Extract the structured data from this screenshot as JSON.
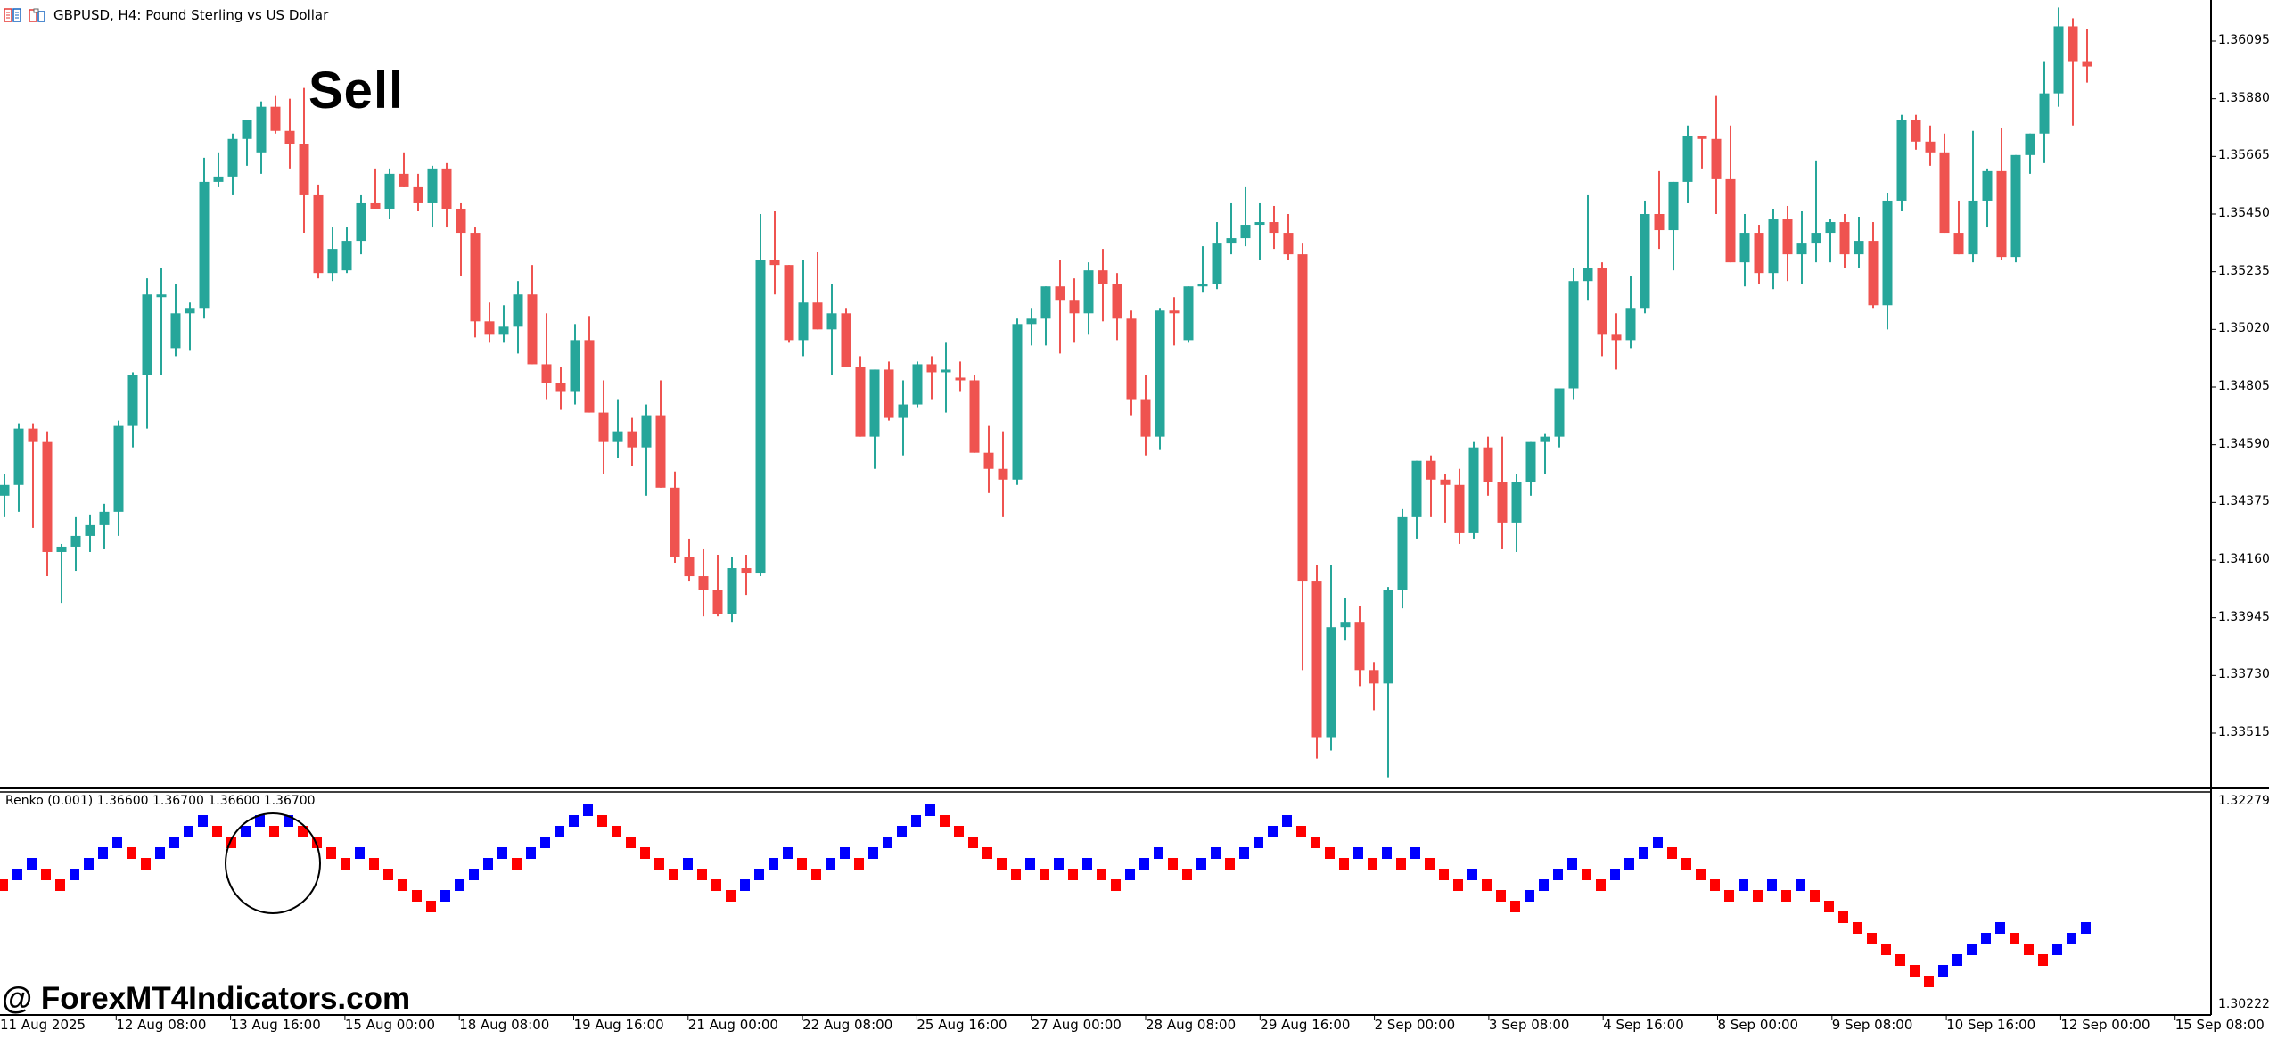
{
  "window": {
    "title": "GBPUSD, H4:  Pound Sterling vs US Dollar",
    "icons": [
      "chart-list-icon",
      "chart-window-icon"
    ]
  },
  "annotations": {
    "signal_label": "Sell",
    "watermark": "@ ForexMT4Indicators.com"
  },
  "colors": {
    "bull": "#26a69a",
    "bear": "#ef5350",
    "renko_up": "#0000ff",
    "renko_down": "#ff0000",
    "axis": "#000000",
    "background": "#ffffff"
  },
  "indicator": {
    "label": "Renko (0.001) 1.36600 1.36700 1.36600 1.36700",
    "scale_top": "1.32279",
    "scale_bottom": "1.30222"
  },
  "price_axis": {
    "ticks": [
      "1.36095",
      "1.35880",
      "1.35665",
      "1.35450",
      "1.35235",
      "1.35020",
      "1.34805",
      "1.34590",
      "1.34375",
      "1.34160",
      "1.33945",
      "1.33730",
      "1.33515"
    ]
  },
  "time_axis": {
    "ticks": [
      "11 Aug 2025",
      "12 Aug 08:00",
      "13 Aug 16:00",
      "15 Aug 00:00",
      "18 Aug 08:00",
      "19 Aug 16:00",
      "21 Aug 00:00",
      "22 Aug 08:00",
      "25 Aug 16:00",
      "27 Aug 00:00",
      "28 Aug 08:00",
      "29 Aug 16:00",
      "2 Sep 00:00",
      "3 Sep 08:00",
      "4 Sep 16:00",
      "8 Sep 00:00",
      "9 Sep 08:00",
      "10 Sep 16:00",
      "12 Sep 00:00",
      "15 Sep 08:00"
    ]
  },
  "chart_data": {
    "type": "candlestick",
    "symbol": "GBPUSD",
    "timeframe": "H4",
    "title": "GBPUSD, H4:  Pound Sterling vs US Dollar",
    "ylim": [
      1.333,
      1.3625
    ],
    "candles_ohlc": [
      [
        1.344,
        1.3448,
        1.3432,
        1.3444
      ],
      [
        1.3444,
        1.3467,
        1.3434,
        1.3465
      ],
      [
        1.3465,
        1.3467,
        1.3428,
        1.346
      ],
      [
        1.346,
        1.3464,
        1.341,
        1.3419
      ],
      [
        1.3419,
        1.3422,
        1.34,
        1.3421
      ],
      [
        1.3421,
        1.3432,
        1.3412,
        1.3425
      ],
      [
        1.3425,
        1.3433,
        1.3419,
        1.3429
      ],
      [
        1.3429,
        1.3437,
        1.342,
        1.3434
      ],
      [
        1.3434,
        1.3468,
        1.3425,
        1.3466
      ],
      [
        1.3466,
        1.3486,
        1.3458,
        1.3485
      ],
      [
        1.3485,
        1.3521,
        1.3465,
        1.3515
      ],
      [
        1.3515,
        1.3525,
        1.3485,
        1.3515
      ],
      [
        1.3495,
        1.3519,
        1.3492,
        1.3508
      ],
      [
        1.3508,
        1.3512,
        1.3494,
        1.351
      ],
      [
        1.351,
        1.3566,
        1.3506,
        1.3557
      ],
      [
        1.3557,
        1.3568,
        1.3555,
        1.3559
      ],
      [
        1.3559,
        1.3575,
        1.3552,
        1.3573
      ],
      [
        1.3573,
        1.3579,
        1.3563,
        1.358
      ],
      [
        1.3568,
        1.3587,
        1.356,
        1.3585
      ],
      [
        1.3585,
        1.3589,
        1.3575,
        1.3576
      ],
      [
        1.3576,
        1.3588,
        1.3562,
        1.3571
      ],
      [
        1.3571,
        1.3592,
        1.3538,
        1.3552
      ],
      [
        1.3552,
        1.3556,
        1.3521,
        1.3523
      ],
      [
        1.3523,
        1.354,
        1.352,
        1.3532
      ],
      [
        1.3524,
        1.354,
        1.3523,
        1.3535
      ],
      [
        1.3535,
        1.3552,
        1.353,
        1.3549
      ],
      [
        1.3549,
        1.3562,
        1.3548,
        1.3547
      ],
      [
        1.3547,
        1.3562,
        1.3543,
        1.356
      ],
      [
        1.356,
        1.3568,
        1.3555,
        1.3555
      ],
      [
        1.3555,
        1.356,
        1.3546,
        1.3549
      ],
      [
        1.3549,
        1.3563,
        1.354,
        1.3562
      ],
      [
        1.3562,
        1.3564,
        1.354,
        1.3547
      ],
      [
        1.3547,
        1.3549,
        1.3522,
        1.3538
      ],
      [
        1.3538,
        1.354,
        1.3499,
        1.3505
      ],
      [
        1.3505,
        1.3512,
        1.3497,
        1.35
      ],
      [
        1.35,
        1.3511,
        1.3497,
        1.3503
      ],
      [
        1.3503,
        1.352,
        1.3493,
        1.3515
      ],
      [
        1.3515,
        1.3526,
        1.3489,
        1.3489
      ],
      [
        1.3489,
        1.3508,
        1.3476,
        1.3482
      ],
      [
        1.3482,
        1.3488,
        1.3472,
        1.3479
      ],
      [
        1.3479,
        1.3504,
        1.3474,
        1.3498
      ],
      [
        1.3498,
        1.3507,
        1.3473,
        1.3471
      ],
      [
        1.3471,
        1.3483,
        1.3448,
        1.346
      ],
      [
        1.346,
        1.3476,
        1.3454,
        1.3464
      ],
      [
        1.3464,
        1.3469,
        1.3451,
        1.3458
      ],
      [
        1.3458,
        1.3474,
        1.344,
        1.347
      ],
      [
        1.347,
        1.3483,
        1.3446,
        1.3443
      ],
      [
        1.3443,
        1.3449,
        1.3415,
        1.3417
      ],
      [
        1.3417,
        1.3424,
        1.3408,
        1.341
      ],
      [
        1.341,
        1.342,
        1.3395,
        1.3405
      ],
      [
        1.3405,
        1.3418,
        1.3395,
        1.3396
      ],
      [
        1.3396,
        1.3417,
        1.3393,
        1.3413
      ],
      [
        1.3413,
        1.3418,
        1.3403,
        1.3411
      ],
      [
        1.3411,
        1.3545,
        1.341,
        1.3528
      ],
      [
        1.3528,
        1.3546,
        1.3515,
        1.3526
      ],
      [
        1.3526,
        1.3517,
        1.3497,
        1.3498
      ],
      [
        1.3498,
        1.3528,
        1.3492,
        1.3512
      ],
      [
        1.3512,
        1.3531,
        1.3503,
        1.3502
      ],
      [
        1.3502,
        1.3519,
        1.3485,
        1.3508
      ],
      [
        1.3508,
        1.351,
        1.3489,
        1.3488
      ],
      [
        1.3488,
        1.3492,
        1.3463,
        1.3462
      ],
      [
        1.3462,
        1.3485,
        1.345,
        1.3487
      ],
      [
        1.3487,
        1.349,
        1.3468,
        1.3469
      ],
      [
        1.3469,
        1.3483,
        1.3455,
        1.3474
      ],
      [
        1.3474,
        1.349,
        1.3473,
        1.3489
      ],
      [
        1.3489,
        1.3492,
        1.3476,
        1.3486
      ],
      [
        1.3486,
        1.3497,
        1.3471,
        1.3487
      ],
      [
        1.3484,
        1.349,
        1.3479,
        1.3483
      ],
      [
        1.3483,
        1.3485,
        1.3458,
        1.3456
      ],
      [
        1.3456,
        1.3466,
        1.3441,
        1.345
      ],
      [
        1.345,
        1.3464,
        1.3432,
        1.3446
      ],
      [
        1.3446,
        1.3506,
        1.3444,
        1.3504
      ],
      [
        1.3504,
        1.351,
        1.3496,
        1.3506
      ],
      [
        1.3506,
        1.3514,
        1.3496,
        1.3518
      ],
      [
        1.3518,
        1.3528,
        1.3493,
        1.3513
      ],
      [
        1.3513,
        1.3521,
        1.3497,
        1.3508
      ],
      [
        1.3508,
        1.3527,
        1.35,
        1.3524
      ],
      [
        1.3524,
        1.3532,
        1.3505,
        1.3519
      ],
      [
        1.3519,
        1.3523,
        1.3498,
        1.3506
      ],
      [
        1.3506,
        1.3509,
        1.347,
        1.3476
      ],
      [
        1.3476,
        1.3485,
        1.3455,
        1.3462
      ],
      [
        1.3462,
        1.351,
        1.3457,
        1.3509
      ],
      [
        1.3509,
        1.3514,
        1.3496,
        1.3508
      ],
      [
        1.3498,
        1.3518,
        1.3497,
        1.3518
      ],
      [
        1.3518,
        1.3533,
        1.3516,
        1.3519
      ],
      [
        1.3519,
        1.3542,
        1.3517,
        1.3534
      ],
      [
        1.3534,
        1.3549,
        1.353,
        1.3536
      ],
      [
        1.3536,
        1.3555,
        1.3533,
        1.3541
      ],
      [
        1.3541,
        1.3549,
        1.3528,
        1.3542
      ],
      [
        1.3542,
        1.3548,
        1.3532,
        1.3538
      ],
      [
        1.3538,
        1.3545,
        1.3528,
        1.353
      ],
      [
        1.353,
        1.3534,
        1.3375,
        1.3408
      ],
      [
        1.3408,
        1.3414,
        1.3342,
        1.335
      ],
      [
        1.335,
        1.3414,
        1.3345,
        1.3391
      ],
      [
        1.3391,
        1.3402,
        1.3386,
        1.3393
      ],
      [
        1.3393,
        1.3399,
        1.3369,
        1.3375
      ],
      [
        1.3375,
        1.3378,
        1.336,
        1.337
      ],
      [
        1.337,
        1.3406,
        1.3335,
        1.3405
      ],
      [
        1.3405,
        1.3435,
        1.3398,
        1.3432
      ],
      [
        1.3432,
        1.345,
        1.3424,
        1.3453
      ],
      [
        1.3453,
        1.3455,
        1.3432,
        1.3446
      ],
      [
        1.3446,
        1.3448,
        1.343,
        1.3444
      ],
      [
        1.3444,
        1.345,
        1.3422,
        1.3426
      ],
      [
        1.3426,
        1.346,
        1.3424,
        1.3458
      ],
      [
        1.3458,
        1.3462,
        1.344,
        1.3445
      ],
      [
        1.3445,
        1.3462,
        1.342,
        1.343
      ],
      [
        1.343,
        1.3448,
        1.3419,
        1.3445
      ],
      [
        1.3445,
        1.346,
        1.344,
        1.346
      ],
      [
        1.346,
        1.3463,
        1.3448,
        1.3462
      ],
      [
        1.3462,
        1.3478,
        1.3458,
        1.348
      ],
      [
        1.348,
        1.3525,
        1.3476,
        1.352
      ],
      [
        1.352,
        1.3552,
        1.3513,
        1.3525
      ],
      [
        1.3525,
        1.3527,
        1.3492,
        1.35
      ],
      [
        1.35,
        1.3508,
        1.3487,
        1.3498
      ],
      [
        1.3498,
        1.3522,
        1.3495,
        1.351
      ],
      [
        1.351,
        1.355,
        1.3508,
        1.3545
      ],
      [
        1.3545,
        1.3561,
        1.3532,
        1.3539
      ],
      [
        1.3539,
        1.3557,
        1.3524,
        1.3557
      ],
      [
        1.3557,
        1.3578,
        1.3549,
        1.3574
      ],
      [
        1.3574,
        1.3574,
        1.3562,
        1.3573
      ],
      [
        1.3573,
        1.3589,
        1.3545,
        1.3558
      ],
      [
        1.3558,
        1.3578,
        1.3538,
        1.3527
      ],
      [
        1.3527,
        1.3545,
        1.3518,
        1.3538
      ],
      [
        1.3538,
        1.3541,
        1.3519,
        1.3523
      ],
      [
        1.3523,
        1.3547,
        1.3517,
        1.3543
      ],
      [
        1.3543,
        1.3548,
        1.352,
        1.353
      ],
      [
        1.353,
        1.3546,
        1.3519,
        1.3534
      ],
      [
        1.3534,
        1.3565,
        1.3527,
        1.3538
      ],
      [
        1.3538,
        1.3543,
        1.3527,
        1.3542
      ],
      [
        1.3542,
        1.3545,
        1.3525,
        1.353
      ],
      [
        1.353,
        1.3544,
        1.3525,
        1.3535
      ],
      [
        1.3535,
        1.3542,
        1.351,
        1.3511
      ],
      [
        1.3511,
        1.3553,
        1.3502,
        1.355
      ],
      [
        1.355,
        1.3582,
        1.3546,
        1.358
      ],
      [
        1.358,
        1.3582,
        1.3569,
        1.3572
      ],
      [
        1.3572,
        1.3578,
        1.3563,
        1.3568
      ],
      [
        1.3568,
        1.3575,
        1.3544,
        1.3538
      ],
      [
        1.3538,
        1.355,
        1.353,
        1.353
      ],
      [
        1.353,
        1.3576,
        1.3527,
        1.355
      ],
      [
        1.355,
        1.3562,
        1.354,
        1.3561
      ],
      [
        1.3561,
        1.3577,
        1.3528,
        1.3529
      ],
      [
        1.3529,
        1.3566,
        1.3527,
        1.3567
      ],
      [
        1.3567,
        1.3575,
        1.356,
        1.3575
      ],
      [
        1.3575,
        1.3602,
        1.3564,
        1.359
      ],
      [
        1.359,
        1.3622,
        1.3585,
        1.3615
      ],
      [
        1.3615,
        1.3618,
        1.3578,
        1.3602
      ],
      [
        1.3602,
        1.3614,
        1.3594,
        1.36
      ]
    ],
    "renko": {
      "box_size": 0.001,
      "directions": "DUUDDUUUUDDUUUUDDUUDUDDDDUDDDDDUUUUUDUUUUUDDDDDDUDDDUUUUDDUUDUUUUUDDDDDDUDUDUDDUUUDDUUDUUUUDDDDUDUDUDDDUDDDUUUUDDUUUUDDDDDUDUDUDDDDDDDDDUUUUUDDDUUU"
    },
    "xlabel": "",
    "ylabel": ""
  }
}
